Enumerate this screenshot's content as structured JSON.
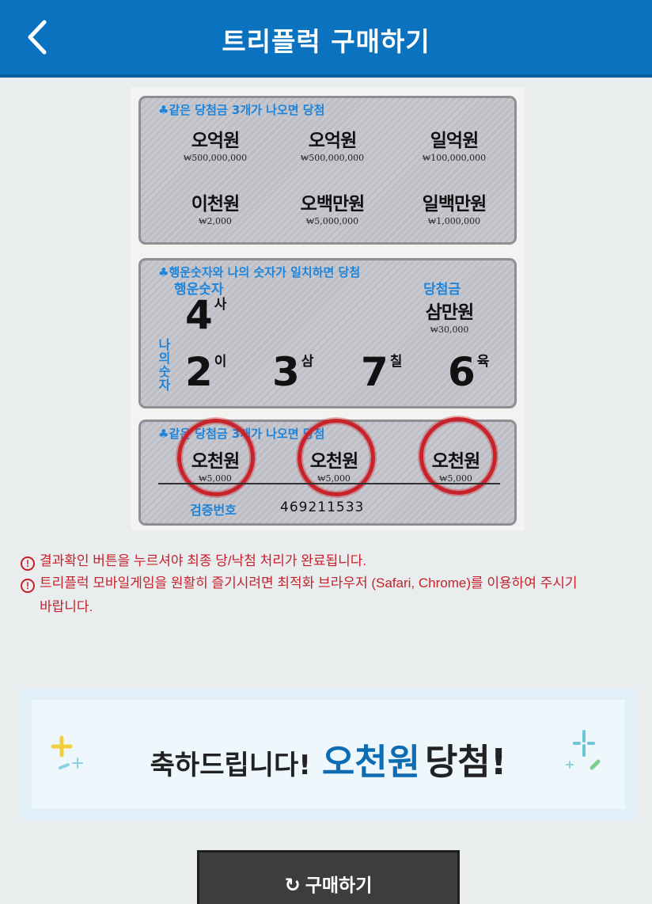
{
  "header": {
    "title": "트리플럭 구매하기",
    "back_icon": "chevron-left-icon"
  },
  "ticket": {
    "section1": {
      "caption": "♣같은 당첨금 3개가 나오면 당첨",
      "prizes": [
        {
          "name": "오억원",
          "amount": "₩500,000,000"
        },
        {
          "name": "오억원",
          "amount": "₩500,000,000"
        },
        {
          "name": "일억원",
          "amount": "₩100,000,000"
        },
        {
          "name": "이천원",
          "amount": "₩2,000"
        },
        {
          "name": "오백만원",
          "amount": "₩5,000,000"
        },
        {
          "name": "일백만원",
          "amount": "₩1,000,000"
        }
      ]
    },
    "section2": {
      "caption": "♣행운숫자와 나의 숫자가 일치하면 당첨",
      "lucky_label": "행운숫자",
      "lucky_number": "4",
      "lucky_reading": "사",
      "prize_label": "당첨금",
      "prize": {
        "name": "삼만원",
        "amount": "₩30,000"
      },
      "my_label": "나의숫자",
      "my_numbers": [
        {
          "n": "2",
          "r": "이"
        },
        {
          "n": "3",
          "r": "삼"
        },
        {
          "n": "7",
          "r": "칠"
        },
        {
          "n": "6",
          "r": "육"
        }
      ]
    },
    "section3": {
      "caption": "♣같은 당첨금 3개가 나오면 당첨",
      "prizes": [
        {
          "name": "오천원",
          "amount": "₩5,000"
        },
        {
          "name": "오천원",
          "amount": "₩5,000"
        },
        {
          "name": "오천원",
          "amount": "₩5,000"
        }
      ],
      "verify_label": "검증번호",
      "verify_number": "469211533"
    }
  },
  "notices": [
    "결과확인 버튼을 누르셔야 최종 당/낙첨 처리가 완료됩니다.",
    "트리플럭 모바일게임을 원활히 즐기시려면 최적화 브라우저 (Safari, Chrome)를 이용하여 주시기",
    "바랍니다."
  ],
  "congrats": {
    "prefix": "축하드립니다!",
    "prize": "오천원",
    "suffix": "당첨!"
  },
  "buy_button": {
    "label": "구매하기",
    "icon": "refresh-icon"
  },
  "colors": {
    "header": "#0b72bf",
    "accent_blue": "#1e84d9",
    "notice_red": "#c6202b",
    "prize_blue": "#0c6db5",
    "circle_red": "#c8232a"
  }
}
